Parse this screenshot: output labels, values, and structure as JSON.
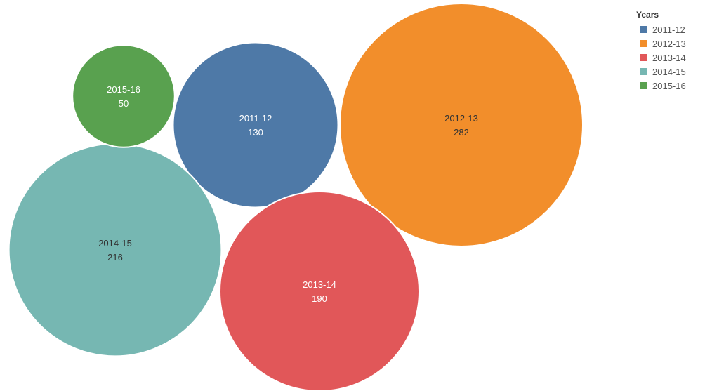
{
  "chart_data": {
    "type": "bubble",
    "title": "",
    "legend": {
      "title": "Years",
      "placement": "top-right"
    },
    "series": [
      {
        "name": "2011-12",
        "value": 130,
        "color": "#4e79a7",
        "label_color": "#ffffff"
      },
      {
        "name": "2012-13",
        "value": 282,
        "color": "#f28e2b",
        "label_color": "#333333"
      },
      {
        "name": "2013-14",
        "value": 190,
        "color": "#e15759",
        "label_color": "#ffffff"
      },
      {
        "name": "2014-15",
        "value": 216,
        "color": "#76b7b2",
        "label_color": "#333333"
      },
      {
        "name": "2015-16",
        "value": 50,
        "color": "#59a14f",
        "label_color": "#ffffff"
      }
    ]
  }
}
